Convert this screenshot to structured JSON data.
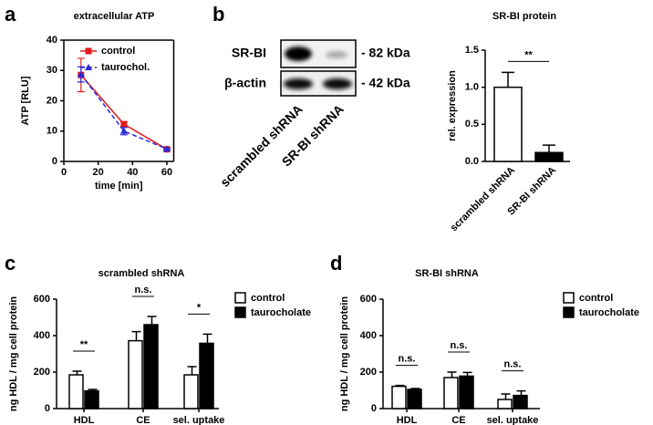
{
  "panels": [
    "a",
    "b",
    "c",
    "d"
  ],
  "blot": {
    "rows": [
      "SR-BI",
      "β-actin"
    ],
    "sizes": [
      "- 82 kDa",
      "- 42 kDa"
    ],
    "lanes": [
      "scrambled shRNA",
      "SR-BI shRNA"
    ]
  },
  "chart_data": [
    {
      "type": "line",
      "title": "extracellular ATP",
      "x_label": "time [min]",
      "y_label": "ATP [RLU]",
      "x": [
        10,
        35,
        60
      ],
      "series": [
        {
          "name": "control",
          "color": "#e31a1c",
          "values": [
            28.5,
            12.3,
            4
          ],
          "errors": [
            5.5,
            0.8,
            0.3
          ]
        },
        {
          "name": "taurochol.",
          "color": "#2a2ad8",
          "values": [
            28.7,
            10,
            4.1
          ],
          "errors": [
            2.5,
            1.2,
            0.3
          ]
        }
      ],
      "xlim": [
        0,
        64
      ],
      "xticks": [
        0,
        20,
        40,
        60
      ],
      "ylim": [
        0,
        40
      ],
      "yticks": [
        0,
        10,
        20,
        30,
        40
      ]
    },
    {
      "type": "bar",
      "title": "SR-BI protein",
      "y_label": "rel. expression",
      "categories": [
        "scrambled shRNA",
        "SR-BI shRNA"
      ],
      "values": [
        1.0,
        0.12
      ],
      "errors": [
        0.2,
        0.1
      ],
      "colors": [
        "#ffffff",
        "#000000"
      ],
      "ylim": [
        0,
        1.5
      ],
      "yticks": [
        {
          "value": 0,
          "label": "0.0"
        },
        {
          "value": 0.5,
          "label": "0.5"
        },
        {
          "value": 1,
          "label": "1.0"
        },
        {
          "value": 1.5,
          "label": "1.5"
        }
      ],
      "significance": "**"
    },
    {
      "type": "grouped_bar",
      "title": "scrambled shRNA",
      "y_label": "ng HDL / mg cell protein",
      "categories": [
        "HDL",
        "CE",
        "sel. uptake"
      ],
      "series": [
        {
          "name": "control",
          "color": "#ffffff",
          "values": [
            185,
            372,
            185
          ],
          "errors": [
            20,
            50,
            45
          ]
        },
        {
          "name": "taurocholate",
          "color": "#000000",
          "values": [
            97,
            460,
            358
          ],
          "errors": [
            8,
            45,
            50
          ]
        }
      ],
      "ylim": [
        0,
        600
      ],
      "yticks": [
        0,
        200,
        400,
        600
      ],
      "significance": [
        "**",
        "n.s.",
        "*"
      ]
    },
    {
      "type": "grouped_bar",
      "title": "SR-BI shRNA",
      "y_label": "ng HDL / mg cell protein",
      "categories": [
        "HDL",
        "CE",
        "sel. uptake"
      ],
      "series": [
        {
          "name": "control",
          "color": "#ffffff",
          "values": [
            122,
            170,
            50
          ],
          "errors": [
            5,
            30,
            30
          ]
        },
        {
          "name": "taurocholate",
          "color": "#000000",
          "values": [
            105,
            178,
            72
          ],
          "errors": [
            5,
            20,
            25
          ]
        }
      ],
      "ylim": [
        0,
        600
      ],
      "yticks": [
        0,
        200,
        400,
        600
      ],
      "significance": [
        "n.s.",
        "n.s.",
        "n.s."
      ]
    }
  ]
}
